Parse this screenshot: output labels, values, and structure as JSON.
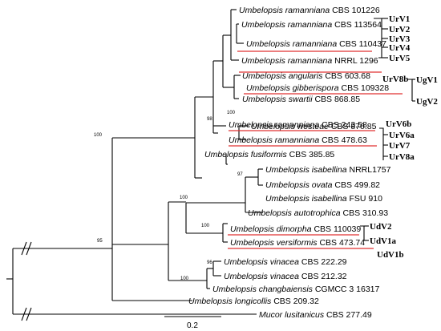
{
  "taxa": [
    {
      "id": "t1",
      "species": "Umbelopsis ramanniana",
      "strain": "CBS 101226"
    },
    {
      "id": "t2",
      "species": "Umbelopsis ramanniana",
      "strain": "CBS 113564"
    },
    {
      "id": "t3",
      "species": "Umbelopsis ramanniana",
      "strain": "CBS 110437"
    },
    {
      "id": "t4",
      "species": "Umbelopsis ramanniana",
      "strain": "NRRL 1296"
    },
    {
      "id": "t5",
      "species": "Umbelopsis angularis",
      "strain": "CBS 603.68"
    },
    {
      "id": "t6",
      "species": "Umbelopsis gibberispora",
      "strain": "CBS 109328"
    },
    {
      "id": "t7",
      "species": "Umbelopsis swartii",
      "strain": "CBS 868.85"
    },
    {
      "id": "t8",
      "species": "Umbelopsis westeae",
      "strain": "CBS 870.85"
    },
    {
      "id": "t9",
      "species": "Umbelopsis ramanniana",
      "strain": "CBS 243.58"
    },
    {
      "id": "t10",
      "species": "Umbelopsis ramanniana",
      "strain": "CBS 478.63"
    },
    {
      "id": "t11",
      "species": "Umbelopsis fusiformis",
      "strain": "CBS 385.85"
    },
    {
      "id": "t12",
      "species": "Umbelopsis isabellina",
      "strain": "NRRL1757"
    },
    {
      "id": "t13",
      "species": "Umbelopsis ovata",
      "strain": "CBS 499.82"
    },
    {
      "id": "t14",
      "species": "Umbelopsis isabellina",
      "strain": "FSU 910"
    },
    {
      "id": "t15",
      "species": "Umbelopsis autotrophica",
      "strain": "CBS 310.93"
    },
    {
      "id": "t16",
      "species": "Umbelopsis dimorpha",
      "strain": "CBS 110039"
    },
    {
      "id": "t17",
      "species": "Umbelopsis versiformis",
      "strain": "CBS 473.74"
    },
    {
      "id": "t18",
      "species": "Umbelopsis vinacea",
      "strain": "CBS 222.29"
    },
    {
      "id": "t19",
      "species": "Umbelopsis vinacea",
      "strain": "CBS 212.32"
    },
    {
      "id": "t20",
      "species": "Umbelopsis changbaiensis",
      "strain": "CGMCC 3 16317"
    },
    {
      "id": "t21",
      "species": "Umbelopsis longicollis",
      "strain": "CBS 209.32"
    },
    {
      "id": "t22",
      "species": "Mucor lusitanicus",
      "strain": "CBS 277.49"
    }
  ],
  "bootstrap": [
    "100",
    "98",
    "100",
    "97",
    "100",
    "100",
    "95",
    "96",
    "100"
  ],
  "viruses": [
    "UrV1",
    "UrV2",
    "UrV3",
    "UrV4",
    "UrV5",
    "UrV8b",
    "UgV1",
    "UgV2",
    "UrV6b",
    "UrV6a",
    "UrV7",
    "UrV8a",
    "UdV2",
    "UdV1a",
    "UdV1b"
  ],
  "scale_bar": {
    "label": "0.2",
    "length": 0.2
  }
}
